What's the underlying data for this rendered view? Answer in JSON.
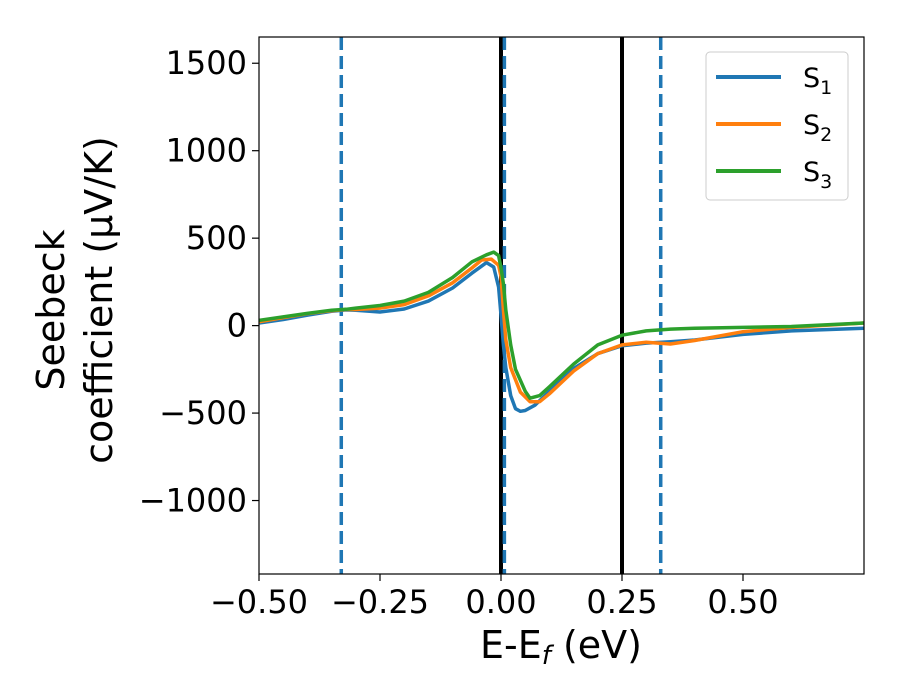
{
  "chart_data": {
    "type": "line",
    "xlabel": {
      "main": "E-E",
      "sub": "f",
      "unit": " (eV)"
    },
    "ylabel": {
      "line1": "Seebeck",
      "line2": "coefficient  (μV/K)"
    },
    "xlim": [
      -0.5,
      0.75
    ],
    "ylim": [
      -1420,
      1650
    ],
    "x_ticks": [
      -0.5,
      -0.25,
      0.0,
      0.25,
      0.5
    ],
    "x_tick_labels": [
      "−0.50",
      "−0.25",
      "0.00",
      "0.25",
      "0.50"
    ],
    "y_ticks": [
      -1000,
      -500,
      0,
      500,
      1000,
      1500
    ],
    "y_tick_labels": [
      "−1000",
      "−500",
      "0",
      "500",
      "1000",
      "1500"
    ],
    "grid": false,
    "legend_position": "top-right",
    "vertical_lines": [
      {
        "x": -0.33,
        "style": "dashed",
        "color": "#1f77b4"
      },
      {
        "x": 0.0,
        "style": "solid",
        "color": "#000000"
      },
      {
        "x": 0.007,
        "style": "dashed",
        "color": "#1f77b4"
      },
      {
        "x": 0.25,
        "style": "solid",
        "color": "#000000"
      },
      {
        "x": 0.33,
        "style": "dashed",
        "color": "#1f77b4"
      }
    ],
    "series": [
      {
        "name": "S",
        "sub": "1",
        "color": "#1f77b4",
        "points": [
          [
            -0.5,
            15
          ],
          [
            -0.45,
            35
          ],
          [
            -0.4,
            60
          ],
          [
            -0.35,
            82
          ],
          [
            -0.32,
            90
          ],
          [
            -0.3,
            88
          ],
          [
            -0.25,
            78
          ],
          [
            -0.2,
            95
          ],
          [
            -0.15,
            140
          ],
          [
            -0.1,
            215
          ],
          [
            -0.06,
            300
          ],
          [
            -0.03,
            360
          ],
          [
            -0.015,
            335
          ],
          [
            -0.005,
            220
          ],
          [
            0.0,
            60
          ],
          [
            0.005,
            -110
          ],
          [
            0.01,
            -240
          ],
          [
            0.02,
            -400
          ],
          [
            0.03,
            -475
          ],
          [
            0.04,
            -490
          ],
          [
            0.05,
            -485
          ],
          [
            0.07,
            -455
          ],
          [
            0.1,
            -375
          ],
          [
            0.15,
            -245
          ],
          [
            0.2,
            -160
          ],
          [
            0.25,
            -115
          ],
          [
            0.3,
            -100
          ],
          [
            0.35,
            -92
          ],
          [
            0.4,
            -82
          ],
          [
            0.5,
            -50
          ],
          [
            0.6,
            -30
          ],
          [
            0.75,
            -15
          ]
        ]
      },
      {
        "name": "S",
        "sub": "2",
        "color": "#ff7f0e",
        "points": [
          [
            -0.5,
            22
          ],
          [
            -0.45,
            45
          ],
          [
            -0.4,
            68
          ],
          [
            -0.35,
            85
          ],
          [
            -0.32,
            92
          ],
          [
            -0.3,
            92
          ],
          [
            -0.25,
            100
          ],
          [
            -0.2,
            120
          ],
          [
            -0.15,
            170
          ],
          [
            -0.1,
            245
          ],
          [
            -0.06,
            330
          ],
          [
            -0.04,
            375
          ],
          [
            -0.02,
            380
          ],
          [
            -0.005,
            345
          ],
          [
            0.0,
            280
          ],
          [
            0.005,
            90
          ],
          [
            0.01,
            -80
          ],
          [
            0.02,
            -240
          ],
          [
            0.04,
            -380
          ],
          [
            0.06,
            -435
          ],
          [
            0.08,
            -435
          ],
          [
            0.1,
            -390
          ],
          [
            0.15,
            -260
          ],
          [
            0.2,
            -160
          ],
          [
            0.25,
            -110
          ],
          [
            0.3,
            -95
          ],
          [
            0.35,
            -105
          ],
          [
            0.4,
            -85
          ],
          [
            0.5,
            -35
          ],
          [
            0.6,
            -10
          ],
          [
            0.75,
            15
          ]
        ]
      },
      {
        "name": "S",
        "sub": "3",
        "color": "#2ca02c",
        "points": [
          [
            -0.5,
            30
          ],
          [
            -0.45,
            50
          ],
          [
            -0.4,
            70
          ],
          [
            -0.35,
            88
          ],
          [
            -0.32,
            93
          ],
          [
            -0.3,
            100
          ],
          [
            -0.25,
            115
          ],
          [
            -0.2,
            140
          ],
          [
            -0.15,
            190
          ],
          [
            -0.1,
            275
          ],
          [
            -0.06,
            365
          ],
          [
            -0.03,
            405
          ],
          [
            -0.015,
            420
          ],
          [
            -0.005,
            400
          ],
          [
            0.0,
            330
          ],
          [
            0.005,
            240
          ],
          [
            0.01,
            90
          ],
          [
            0.02,
            -110
          ],
          [
            0.03,
            -250
          ],
          [
            0.05,
            -375
          ],
          [
            0.06,
            -415
          ],
          [
            0.08,
            -400
          ],
          [
            0.1,
            -350
          ],
          [
            0.15,
            -220
          ],
          [
            0.2,
            -110
          ],
          [
            0.25,
            -55
          ],
          [
            0.3,
            -30
          ],
          [
            0.35,
            -20
          ],
          [
            0.4,
            -15
          ],
          [
            0.5,
            -10
          ],
          [
            0.6,
            -5
          ],
          [
            0.75,
            15
          ]
        ]
      }
    ]
  }
}
